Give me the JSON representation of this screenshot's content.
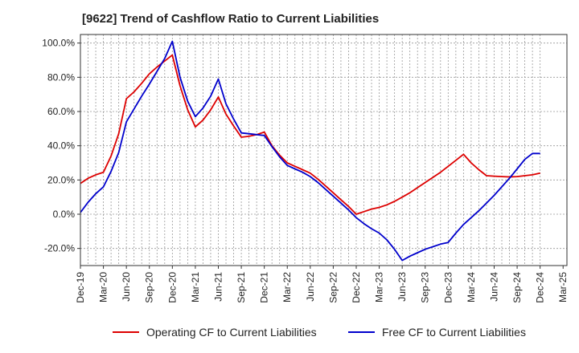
{
  "chart_data": {
    "type": "line",
    "title": "[9622]  Trend of Cashflow Ratio to Current Liabilities",
    "xlabel": "",
    "ylabel": "",
    "ylim": [
      -30,
      105
    ],
    "yticks": [
      -20,
      0,
      20,
      40,
      60,
      80,
      100
    ],
    "ytick_labels": [
      "-20.0%",
      "0.0%",
      "20.0%",
      "40.0%",
      "60.0%",
      "80.0%",
      "100.0%"
    ],
    "xtick_labels": [
      "Dec-19",
      "Mar-20",
      "Jun-20",
      "Sep-20",
      "Dec-20",
      "Mar-21",
      "Jun-21",
      "Sep-21",
      "Dec-21",
      "Mar-22",
      "Jun-22",
      "Sep-22",
      "Dec-22",
      "Mar-23",
      "Jun-23",
      "Sep-23",
      "Dec-23",
      "Mar-24",
      "Jun-24",
      "Sep-24",
      "Dec-24",
      "Mar-25"
    ],
    "grid": true,
    "legend_position": "bottom",
    "x": [
      "Dec-19",
      "Jan-20",
      "Feb-20",
      "Mar-20",
      "Apr-20",
      "May-20",
      "Jun-20",
      "Jul-20",
      "Aug-20",
      "Sep-20",
      "Oct-20",
      "Nov-20",
      "Dec-20",
      "Jan-21",
      "Feb-21",
      "Mar-21",
      "Apr-21",
      "May-21",
      "Jun-21",
      "Jul-21",
      "Aug-21",
      "Sep-21",
      "Oct-21",
      "Nov-21",
      "Dec-21",
      "Jan-22",
      "Feb-22",
      "Mar-22",
      "Apr-22",
      "May-22",
      "Jun-22",
      "Jul-22",
      "Aug-22",
      "Sep-22",
      "Oct-22",
      "Nov-22",
      "Dec-22",
      "Jan-23",
      "Feb-23",
      "Mar-23",
      "Apr-23",
      "May-23",
      "Jun-23",
      "Jul-23",
      "Aug-23",
      "Sep-23",
      "Oct-23",
      "Nov-23",
      "Dec-23",
      "Jan-24",
      "Feb-24",
      "Mar-24",
      "Apr-24",
      "May-24",
      "Jun-24",
      "Jul-24",
      "Aug-24",
      "Sep-24",
      "Oct-24",
      "Nov-24",
      "Dec-24"
    ],
    "series": [
      {
        "name": "Operating CF to Current Liabilities",
        "color": "#dd0000",
        "values": [
          18,
          21,
          23,
          24.5,
          34,
          47,
          67.5,
          71.5,
          76.5,
          82,
          86,
          89.5,
          93,
          75,
          61,
          51,
          55,
          61,
          68.5,
          58.5,
          51.5,
          45,
          45.5,
          46.5,
          48,
          40,
          34.5,
          30,
          28,
          26,
          24,
          20.5,
          16.5,
          12.5,
          8.5,
          4.5,
          0,
          1.5,
          3,
          4,
          5.5,
          7.5,
          10,
          12.5,
          15.5,
          18.5,
          21.5,
          24.5,
          28,
          31.5,
          35,
          30,
          26,
          22.5,
          22.2,
          22,
          21.8,
          22,
          22.5,
          23,
          24
        ]
      },
      {
        "name": "Free CF to Current Liabilities",
        "color": "#0000cc",
        "values": [
          1,
          7,
          12,
          16,
          25,
          36,
          54,
          61.5,
          69,
          76,
          83.5,
          91,
          101,
          80,
          66,
          57,
          62,
          69,
          79,
          64.5,
          55.5,
          47.5,
          47,
          46.5,
          46,
          39.5,
          33.5,
          28.5,
          26.5,
          24.5,
          22,
          18.5,
          14.5,
          10.5,
          6.5,
          2.5,
          -2,
          -5.5,
          -8.5,
          -11,
          -15,
          -20.5,
          -27,
          -24.5,
          -22.5,
          -20.5,
          -19,
          -17.5,
          -16.5,
          -11,
          -6,
          -2,
          2,
          6.5,
          11,
          16,
          21,
          26.5,
          32,
          35.5,
          35.5
        ]
      }
    ]
  }
}
